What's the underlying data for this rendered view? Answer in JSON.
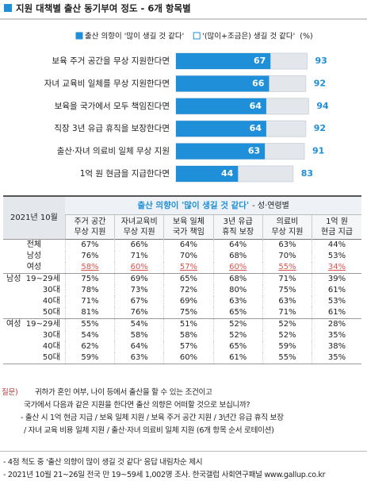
{
  "title": "지원 대책별 출산 동기부여 정도 - 6개 항목별",
  "chart_data": {
    "type": "bar",
    "unit": "(%)",
    "categories": [
      "보육 주거 공간을 무상 지원한다면",
      "자녀 교육비 일체를 무상 지원한다면",
      "보육을 국가에서 모두 책임진다면",
      "직장 3년 유급 휴직을 보장한다면",
      "출산·자녀 의료비 일체 무상 지원",
      "1억 원 현금을 지급한다면"
    ],
    "series": [
      {
        "name": "출산 의향이 '많이 생길 것 같다'",
        "color": "#1e8fd8",
        "values": [
          67,
          66,
          64,
          64,
          63,
          44
        ]
      },
      {
        "name": "'(많이+조금은) 생길 것 같다'",
        "color": "#e3e7ec",
        "values": [
          93,
          92,
          94,
          92,
          91,
          83
        ]
      }
    ],
    "xlim": [
      0,
      100
    ]
  },
  "table": {
    "date": "2021년 10월",
    "group_title": "출산 의향이 '많이 생길 것 같다'",
    "group_subtitle": "- 성·연령별",
    "columns": [
      [
        "주거 공간",
        "무상 지원"
      ],
      [
        "자녀교육비",
        "무상 지원"
      ],
      [
        "보육 일체",
        "국가 책임"
      ],
      [
        "3년 유급",
        "휴직 보장"
      ],
      [
        "의료비",
        "무상 지원"
      ],
      [
        "1억 원",
        "현금 지급"
      ]
    ],
    "blocks": [
      {
        "rows": [
          {
            "label": "전체",
            "values": [
              "67%",
              "66%",
              "64%",
              "64%",
              "63%",
              "44%"
            ]
          },
          {
            "label": "남성",
            "values": [
              "76%",
              "71%",
              "70%",
              "68%",
              "70%",
              "53%"
            ]
          },
          {
            "label": "여성",
            "highlight": true,
            "values": [
              "58%",
              "60%",
              "57%",
              "60%",
              "55%",
              "34%"
            ]
          }
        ]
      },
      {
        "group": "남성",
        "rows": [
          {
            "label": "19~29세",
            "values": [
              "75%",
              "69%",
              "65%",
              "68%",
              "71%",
              "39%"
            ]
          },
          {
            "label": "30대",
            "values": [
              "78%",
              "73%",
              "72%",
              "80%",
              "75%",
              "61%"
            ]
          },
          {
            "label": "40대",
            "values": [
              "71%",
              "67%",
              "69%",
              "63%",
              "63%",
              "53%"
            ]
          },
          {
            "label": "50대",
            "values": [
              "81%",
              "76%",
              "75%",
              "65%",
              "71%",
              "61%"
            ]
          }
        ]
      },
      {
        "group": "여성",
        "rows": [
          {
            "label": "19~29세",
            "values": [
              "55%",
              "54%",
              "51%",
              "52%",
              "52%",
              "28%"
            ]
          },
          {
            "label": "30대",
            "values": [
              "54%",
              "58%",
              "58%",
              "52%",
              "52%",
              "35%"
            ]
          },
          {
            "label": "40대",
            "values": [
              "62%",
              "64%",
              "57%",
              "65%",
              "59%",
              "38%"
            ]
          },
          {
            "label": "50대",
            "values": [
              "59%",
              "63%",
              "60%",
              "61%",
              "55%",
              "35%"
            ]
          }
        ]
      }
    ]
  },
  "question": {
    "label": "질문)",
    "lines": [
      "귀하가 혼인 여부, 나이 등에서 출산을 할 수 있는 조건이고",
      "국가에서 다음과 같은 지원을 한다면 출산 의향은 어떠할 것으로 보십니까?",
      "- 출산 시 1억 현금 지급 / 보육 일체 지원 / 보육 주거 공간 지원 / 3년간 유급 휴직 보장",
      "/ 자녀 교육 비용 일체 지원 / 출산·자녀 의료비 일체 지원 (6개 항목 순서 로테이션)"
    ]
  },
  "notes": [
    "- 4점 척도 중 '출산 의향이 많이 생길 것 같다' 응답 내림차순 제시",
    "- 2021년 10월 21~26일 전국 만 19~59세 1,002명 조사. 한국갤럽 사회연구패널 www.gallup.co.kr"
  ]
}
